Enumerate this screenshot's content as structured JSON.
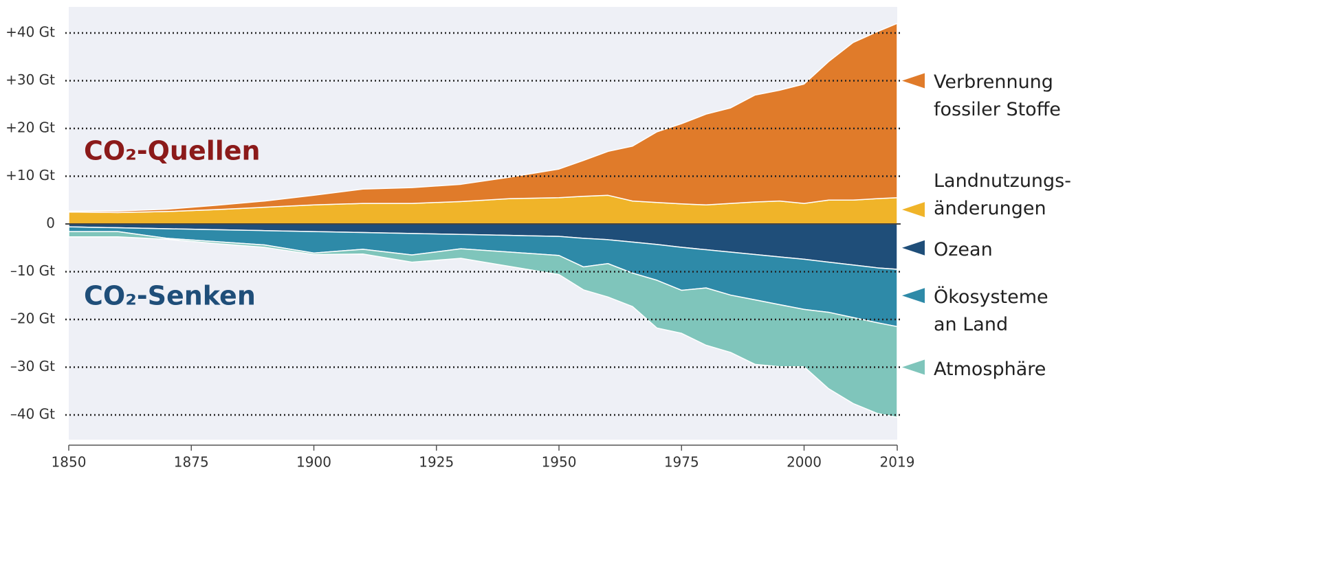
{
  "chart_data": {
    "type": "stacked_area",
    "annotations": [
      "CO₂-Quellen",
      "CO₂-Senken"
    ],
    "x": [
      1850,
      1860,
      1870,
      1880,
      1890,
      1900,
      1910,
      1920,
      1930,
      1940,
      1950,
      1955,
      1960,
      1965,
      1970,
      1975,
      1980,
      1985,
      1990,
      1995,
      2000,
      2005,
      2010,
      2015,
      2019
    ],
    "series": [
      {
        "name": "Verbrennung fossiler Stoffe",
        "color": "#e07b2a",
        "values": [
          0.2,
          0.3,
          0.5,
          0.9,
          1.3,
          2.0,
          3.0,
          3.3,
          3.6,
          4.5,
          6.0,
          7.5,
          9.2,
          11.5,
          14.8,
          16.8,
          19.0,
          20.0,
          22.4,
          23.2,
          25.0,
          29.0,
          33.0,
          35.0,
          36.5
        ]
      },
      {
        "name": "Landnutzungs-änderungen",
        "color": "#f0b429",
        "values": [
          2.5,
          2.4,
          2.6,
          3.0,
          3.5,
          4.0,
          4.3,
          4.3,
          4.7,
          5.3,
          5.5,
          5.8,
          6.0,
          4.8,
          4.5,
          4.2,
          4.0,
          4.3,
          4.6,
          4.8,
          4.3,
          5.0,
          5.0,
          5.3,
          5.5
        ]
      },
      {
        "name": "Ozean",
        "color": "#1f4e79",
        "values": [
          -0.6,
          -0.8,
          -1.0,
          -1.2,
          -1.4,
          -1.6,
          -1.8,
          -2.0,
          -2.2,
          -2.4,
          -2.6,
          -3.0,
          -3.3,
          -3.8,
          -4.3,
          -4.9,
          -5.4,
          -5.9,
          -6.4,
          -6.9,
          -7.4,
          -8.0,
          -8.6,
          -9.2,
          -9.5
        ]
      },
      {
        "name": "Ökosysteme an Land",
        "color": "#2e8aa8",
        "values": [
          -1.0,
          -0.8,
          -2.0,
          -2.5,
          -3.0,
          -4.5,
          -3.5,
          -4.5,
          -3.0,
          -3.5,
          -4.0,
          -6.0,
          -5.0,
          -6.5,
          -7.5,
          -9.0,
          -8.0,
          -9.0,
          -9.5,
          -10.0,
          -10.5,
          -10.5,
          -11.0,
          -11.5,
          -12.0
        ]
      },
      {
        "name": "Atmosphäre",
        "color": "#7fc5bb",
        "values": [
          -1.1,
          -1.1,
          -0.2,
          -0.4,
          -0.5,
          -0.3,
          -1.0,
          -1.5,
          -2.0,
          -3.0,
          -4.0,
          -4.8,
          -7.0,
          -7.0,
          -10.0,
          -9.0,
          -12.0,
          -12.0,
          -13.5,
          -13.0,
          -12.0,
          -16.0,
          -18.0,
          -19.0,
          -19.0
        ]
      }
    ],
    "xlim": [
      1850,
      2019
    ],
    "xticks": [
      1850,
      1875,
      1900,
      1925,
      1950,
      1975,
      2000,
      2019
    ],
    "ylim": [
      -40,
      40
    ],
    "yticks": [
      {
        "value": 40,
        "label": "+40 Gt"
      },
      {
        "value": 30,
        "label": "+30 Gt"
      },
      {
        "value": 20,
        "label": "+20 Gt"
      },
      {
        "value": 10,
        "label": "+10 Gt"
      },
      0,
      {
        "value": -10,
        "label": "–10 Gt"
      },
      {
        "value": -20,
        "label": "–20 Gt"
      },
      {
        "value": -30,
        "label": "–30 Gt"
      },
      {
        "value": -40,
        "label": "–40 Gt"
      }
    ],
    "grid": true
  }
}
